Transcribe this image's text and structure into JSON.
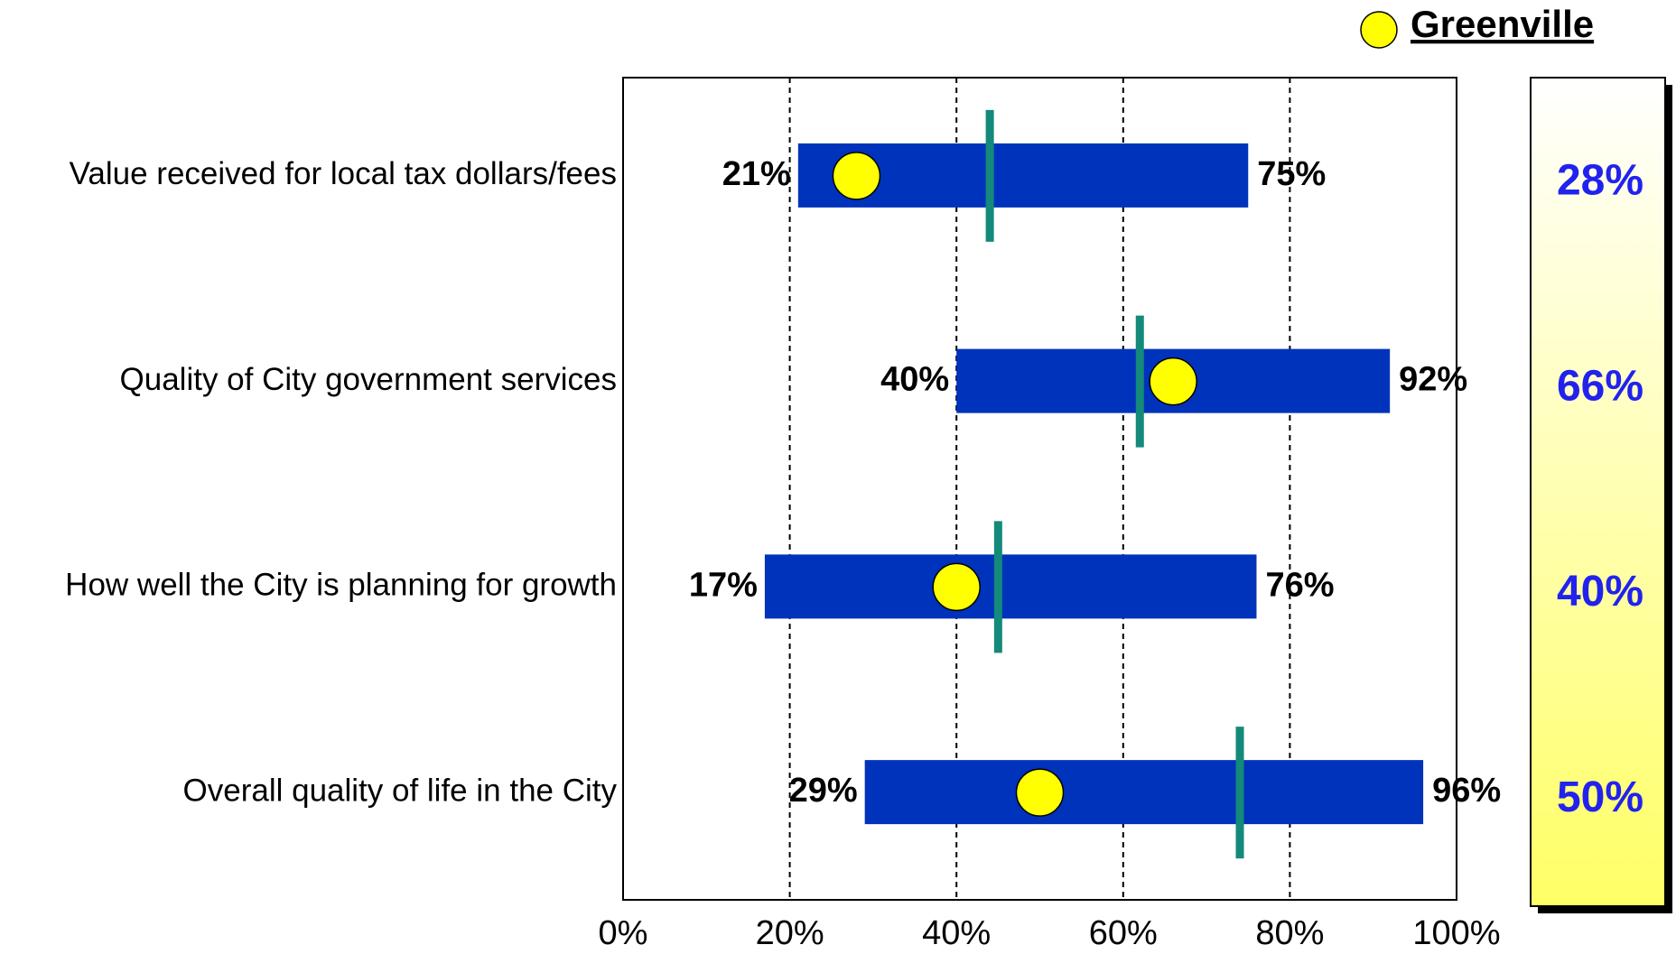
{
  "chart_data": {
    "type": "range",
    "categories": [
      "Value received for local tax dollars/fees",
      "Quality of City government services",
      "How well the City is planning for growth",
      "Overall quality of life in the City"
    ],
    "low": {
      "color": "#0033bb",
      "values": [
        21,
        40,
        17,
        29
      ],
      "value_labels": [
        "21%",
        "40%",
        "17%",
        "29%"
      ]
    },
    "high": {
      "values": [
        75,
        92,
        76,
        96
      ],
      "value_labels": [
        "75%",
        "92%",
        "76%",
        "96%"
      ]
    },
    "marker": {
      "color": "#138a7a",
      "values": [
        44,
        62,
        45,
        74
      ]
    },
    "series": [
      {
        "name": "Greenville",
        "color": "#ffff00",
        "values": [
          28,
          66,
          40,
          50
        ],
        "value_labels": [
          "28%",
          "66%",
          "40%",
          "50%"
        ]
      }
    ],
    "xlim": [
      0,
      100
    ],
    "xticks": [
      {
        "value": 0,
        "label": "0%"
      },
      {
        "value": 20,
        "label": "20%"
      },
      {
        "value": 40,
        "label": "40%"
      },
      {
        "value": 60,
        "label": "60%"
      },
      {
        "value": 80,
        "label": "80%"
      },
      {
        "value": 100,
        "label": "100%"
      }
    ],
    "grid": true
  }
}
